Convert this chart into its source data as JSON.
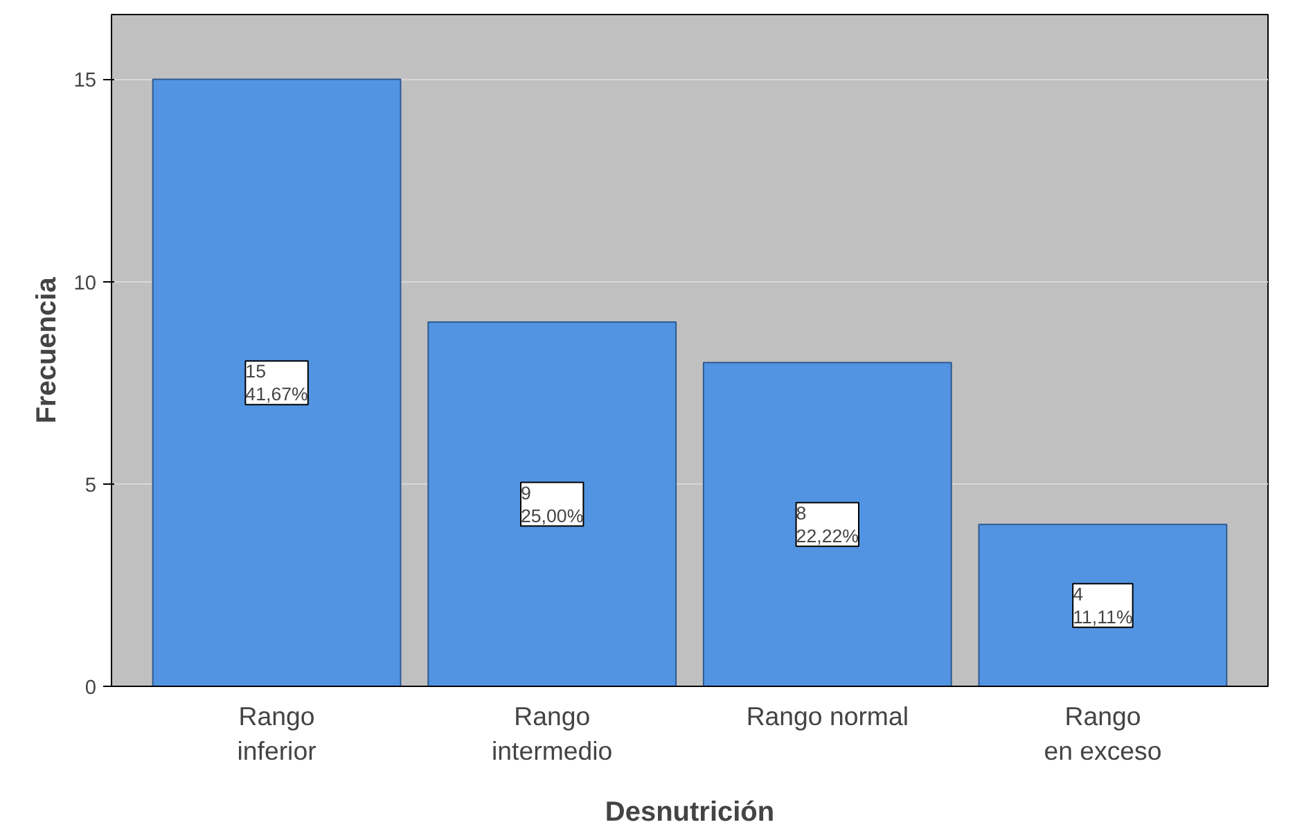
{
  "chart_data": {
    "type": "bar",
    "xlabel": "Desnutrición",
    "ylabel": "Frecuencia",
    "categories": [
      "Rango inferior",
      "Rango intermedio",
      "Rango normal",
      "Rango en exceso"
    ],
    "values": [
      15,
      9,
      8,
      4
    ],
    "value_labels": [
      "15\n41,67%",
      "9\n25,00%",
      "8\n22,22%",
      "4\n11,11%"
    ],
    "color": "#5294e2",
    "ylim": [
      0,
      16.6
    ],
    "yticks": [
      0,
      5,
      10,
      15
    ],
    "grid": "y"
  }
}
